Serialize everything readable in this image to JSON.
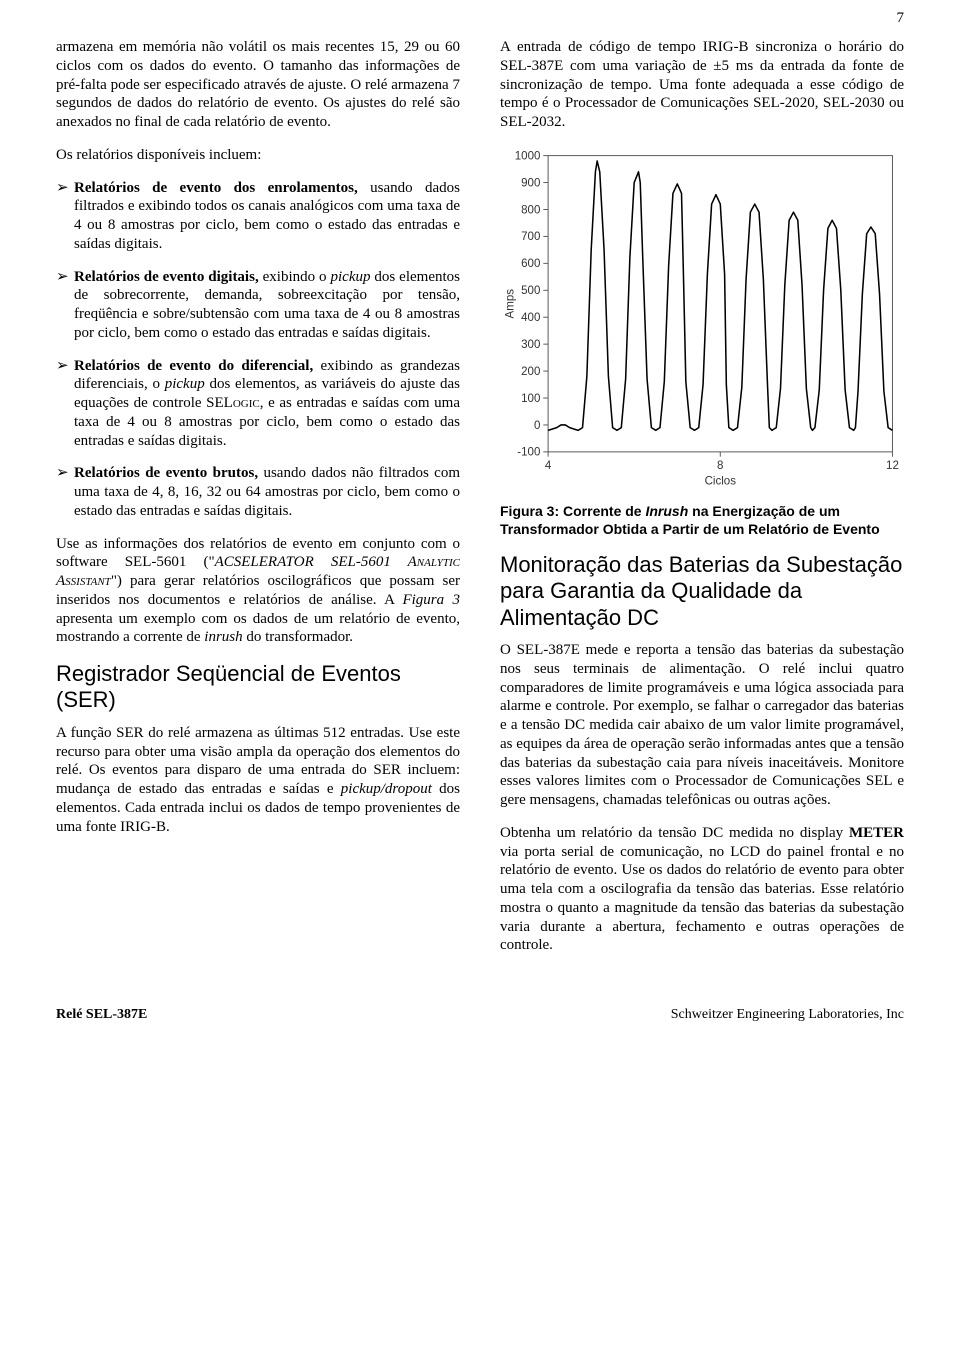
{
  "page_number": "7",
  "left": {
    "p1": "armazena em memória não volátil os mais recentes 15, 29 ou 60 ciclos com os dados do evento. O tamanho das informações de pré-falta pode ser especificado através de ajuste. O relé armazena 7 segundos de dados do relatório de evento. Os ajustes do relé são anexados no final de cada relatório de evento.",
    "list_intro": "Os relatórios disponíveis incluem:",
    "bullets": [
      {
        "bold": "Relatórios de evento dos enrolamentos,",
        "rest": " usando dados filtrados e exibindo todos os canais analógicos com uma taxa de 4 ou 8 amostras por ciclo, bem como o estado das entradas e saídas digitais."
      },
      {
        "bold": "Relatórios de evento digitais,",
        "rest_a": " exibindo o ",
        "italic": "pickup",
        "rest_b": " dos elementos de sobrecorrente, demanda, sobreexcitação por tensão, freqüência e sobre/subtensão com uma taxa de 4 ou 8 amostras por ciclo, bem como o estado das entradas e saídas digitais."
      },
      {
        "bold": "Relatórios de evento do diferencial,",
        "rest_a": " exibindo as grandezas diferenciais, o ",
        "italic": "pickup",
        "rest_b": " dos elementos, as variáveis do ajuste das equações de controle SEL",
        "sc": "ogic",
        "rest_c": ", e as entradas e saídas com uma taxa de 4 ou 8 amostras por ciclo, bem como o estado das entradas e saídas digitais."
      },
      {
        "bold": "Relatórios de evento brutos,",
        "rest": " usando dados não filtrados com uma taxa de 4, 8, 16, 32 ou 64 amostras por ciclo, bem como o estado das entradas e saídas digitais."
      }
    ],
    "p2_a": "Use as informações dos relatórios de evento em conjunto com o software SEL-5601 (\"",
    "p2_i1": "ACSELERATOR SEL-5601 Analytic Assistant",
    "p2_b": "\") para gerar relatórios oscilográficos que possam ser inseridos nos documentos e relatórios de análise. A ",
    "p2_i2": "Figura 3",
    "p2_c": " apresenta um exemplo com os dados de um relatório de evento, mostrando a corrente de ",
    "p2_i3": "inrush",
    "p2_d": " do transformador.",
    "h1": "Registrador Seqüencial de Eventos (SER)",
    "p3_a": "A função SER do relé armazena as últimas 512 entradas. Use este recurso para obter uma visão ampla da operação dos elementos do relé. Os eventos para disparo de uma entrada do SER incluem: mudança de estado das entradas e saídas e ",
    "p3_i": "pickup/dropout",
    "p3_b": " dos elementos. Cada entrada inclui os dados de tempo provenientes de uma fonte IRIG-B."
  },
  "right": {
    "p1": "A entrada de código de tempo IRIG-B sincroniza o horário do SEL-387E com uma variação de ±5 ms da entrada da fonte de sincronização de tempo. Uma fonte adequada a esse código de tempo é o Processador de Comunicações SEL-2020, SEL-2030 ou SEL-2032.",
    "chart": {
      "type": "line",
      "ylabel": "Amps",
      "xlabel": "Ciclos",
      "ylim": [
        -100,
        1000
      ],
      "xlim": [
        4,
        12
      ],
      "ytick_step": 100,
      "xtick_step": 4,
      "axis_color": "#555555",
      "line_color": "#000000",
      "line_width": 1.6,
      "background_color": "#ffffff",
      "label_fontsize": 12,
      "label_font": "Arial",
      "x": [
        4.0,
        4.1,
        4.2,
        4.3,
        4.4,
        4.5,
        4.6,
        4.7,
        4.8,
        4.9,
        5.0,
        5.1,
        5.14,
        5.2,
        5.3,
        5.4,
        5.5,
        5.6,
        5.7,
        5.8,
        5.9,
        6.0,
        6.1,
        6.14,
        6.2,
        6.3,
        6.4,
        6.5,
        6.6,
        6.7,
        6.8,
        6.9,
        7.0,
        7.1,
        7.14,
        7.2,
        7.3,
        7.4,
        7.5,
        7.6,
        7.7,
        7.8,
        7.9,
        8.0,
        8.1,
        8.14,
        8.2,
        8.3,
        8.4,
        8.5,
        8.6,
        8.7,
        8.8,
        8.9,
        9.0,
        9.1,
        9.14,
        9.2,
        9.3,
        9.4,
        9.5,
        9.6,
        9.7,
        9.8,
        9.9,
        10.0,
        10.1,
        10.14,
        10.2,
        10.3,
        10.4,
        10.5,
        10.6,
        10.7,
        10.8,
        10.9,
        11.0,
        11.1,
        11.14,
        11.2,
        11.3,
        11.4,
        11.5,
        11.6,
        11.7,
        11.8,
        11.9,
        12.0
      ],
      "y": [
        -20,
        -15,
        -10,
        0,
        0,
        -10,
        -15,
        -20,
        -10,
        180,
        650,
        940,
        980,
        940,
        650,
        180,
        -10,
        -20,
        -10,
        170,
        620,
        900,
        940,
        900,
        620,
        170,
        -10,
        -20,
        -10,
        160,
        590,
        860,
        895,
        860,
        590,
        160,
        -10,
        -20,
        -10,
        150,
        560,
        820,
        855,
        820,
        560,
        150,
        -10,
        -20,
        -10,
        140,
        540,
        790,
        820,
        790,
        540,
        140,
        -10,
        -20,
        -10,
        135,
        520,
        760,
        790,
        760,
        520,
        135,
        -10,
        -20,
        -10,
        130,
        500,
        730,
        760,
        730,
        500,
        130,
        -10,
        -20,
        -10,
        125,
        485,
        710,
        735,
        710,
        485,
        125,
        -10,
        -20
      ]
    },
    "figcaption_a": "Figura 3:  Corrente de ",
    "figcaption_i": "Inrush",
    "figcaption_b": " na Energização de um Transformador Obtida a Partir de um Relatório de Evento",
    "h1": "Monitoração das Baterias da Subestação para Garantia da Qualidade da Alimentação DC",
    "p2": "O SEL-387E mede e reporta a tensão das baterias da subestação nos seus terminais de alimentação. O relé inclui quatro comparadores de limite programáveis e uma lógica associada para alarme e controle. Por exemplo, se falhar o carregador das baterias e a tensão DC medida cair abaixo de um valor limite programável, as equipes da área de operação serão informadas antes que a tensão das baterias da subestação caia para níveis inaceitáveis. Monitore esses valores limites com o Processador de Comunicações SEL e gere mensagens, chamadas telefônicas ou outras ações.",
    "p3_a": "Obtenha um relatório da tensão DC medida no display ",
    "p3_b_bold": "METER",
    "p3_c": " via porta serial de comunicação, no LCD do painel frontal e no relatório de evento. Use os dados do relatório de evento para obter uma tela com a oscilografia da tensão das baterias. Esse relatório mostra o quanto a magnitude da tensão das baterias da subestação varia durante a abertura, fechamento e outras operações de controle."
  },
  "footer": {
    "left": "Relé  SEL-387E",
    "right": "Schweitzer Engineering Laboratories, Inc"
  }
}
